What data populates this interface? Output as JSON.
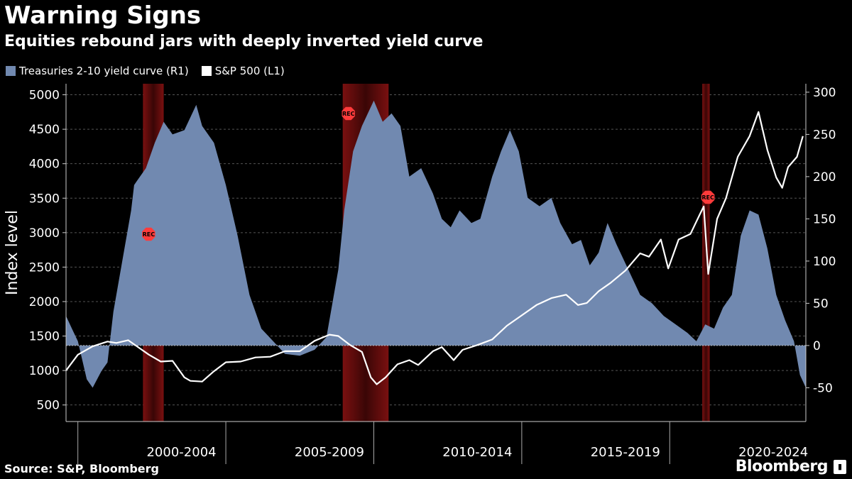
{
  "header": {
    "title": "Warning Signs",
    "subtitle": "Equities rebound jars with deeply inverted yield curve"
  },
  "footer": {
    "source": "Source: S&P, Bloomberg",
    "brand": "Bloomberg"
  },
  "colors": {
    "yield_fill": "#7189b0",
    "sp500_line": "#ffffff",
    "recession": "#7a1010",
    "rec_marker": "#ff3b3b",
    "background": "#000000"
  },
  "chart_data": {
    "type": "area",
    "title": "Warning Signs",
    "subtitle": "Equities rebound jars with deeply inverted yield curve",
    "ylabel_left": "Index level",
    "ylabel_right": "",
    "left_axis": {
      "ticks": [
        500,
        1000,
        1500,
        2000,
        2500,
        3000,
        3500,
        4000,
        4500,
        5000
      ],
      "range": [
        260,
        5160
      ]
    },
    "right_axis": {
      "ticks": [
        -50,
        0,
        50,
        100,
        150,
        200,
        250,
        300
      ],
      "range": [
        -90,
        310
      ]
    },
    "x_axis": {
      "range": [
        1998.6,
        2023.6
      ],
      "tick_labels": [
        "2000-2004",
        "2005-2009",
        "2010-2014",
        "2015-2019",
        "2020-2024"
      ],
      "tick_positions": [
        2002.5,
        2007.5,
        2012.5,
        2017.5,
        2022.5
      ],
      "separators": [
        1999,
        2004,
        2009,
        2014,
        2019
      ]
    },
    "grid": "horizontal dashed",
    "legend_position": "top-left",
    "recessions": [
      {
        "start": 2001.2,
        "end": 2001.9,
        "label": "REC"
      },
      {
        "start": 2007.95,
        "end": 2009.5,
        "label": "REC"
      },
      {
        "start": 2020.1,
        "end": 2020.35,
        "label": "REC"
      }
    ],
    "series": [
      {
        "name": "Treasuries 2-10 yield curve (R1)",
        "axis": "right",
        "x": [
          1998.6,
          1998.8,
          1999.0,
          1999.3,
          1999.5,
          1999.8,
          2000.0,
          2000.2,
          2000.5,
          2000.8,
          2000.9,
          2001.0,
          2001.3,
          2001.6,
          2001.9,
          2002.2,
          2002.6,
          2003.0,
          2003.2,
          2003.6,
          2004.0,
          2004.4,
          2004.8,
          2005.2,
          2005.6,
          2006.0,
          2006.5,
          2007.0,
          2007.4,
          2007.8,
          2008.0,
          2008.3,
          2008.6,
          2009.0,
          2009.3,
          2009.6,
          2009.9,
          2010.2,
          2010.6,
          2011.0,
          2011.3,
          2011.6,
          2011.9,
          2012.3,
          2012.6,
          2013.0,
          2013.3,
          2013.6,
          2013.9,
          2014.2,
          2014.6,
          2015.0,
          2015.3,
          2015.7,
          2016.0,
          2016.3,
          2016.6,
          2016.9,
          2017.2,
          2017.6,
          2018.0,
          2018.4,
          2018.8,
          2019.2,
          2019.6,
          2019.9,
          2020.2,
          2020.5,
          2020.8,
          2021.1,
          2021.4,
          2021.7,
          2022.0,
          2022.3,
          2022.6,
          2022.9,
          2023.2,
          2023.4,
          2023.6
        ],
        "values": [
          35,
          20,
          5,
          -40,
          -50,
          -30,
          -20,
          40,
          100,
          160,
          190,
          195,
          210,
          240,
          265,
          250,
          255,
          285,
          260,
          240,
          190,
          130,
          60,
          20,
          5,
          -10,
          -12,
          -5,
          10,
          90,
          160,
          230,
          260,
          290,
          265,
          275,
          260,
          200,
          210,
          180,
          150,
          140,
          160,
          145,
          150,
          200,
          230,
          255,
          230,
          175,
          165,
          175,
          145,
          120,
          125,
          95,
          110,
          145,
          120,
          90,
          60,
          50,
          35,
          25,
          15,
          5,
          25,
          20,
          45,
          60,
          130,
          160,
          155,
          115,
          60,
          30,
          5,
          -35,
          -50
        ]
      },
      {
        "name": "S&P 500 (L1)",
        "axis": "left",
        "x": [
          1998.6,
          1999.0,
          1999.5,
          2000.0,
          2000.3,
          2000.7,
          2001.0,
          2001.4,
          2001.8,
          2002.2,
          2002.6,
          2002.8,
          2003.2,
          2003.6,
          2004.0,
          2004.5,
          2005.0,
          2005.5,
          2006.0,
          2006.5,
          2007.0,
          2007.5,
          2007.8,
          2008.2,
          2008.6,
          2008.9,
          2009.1,
          2009.4,
          2009.8,
          2010.2,
          2010.5,
          2011.0,
          2011.3,
          2011.7,
          2012.0,
          2012.5,
          2013.0,
          2013.5,
          2014.0,
          2014.5,
          2015.0,
          2015.5,
          2015.9,
          2016.2,
          2016.6,
          2017.0,
          2017.5,
          2018.0,
          2018.3,
          2018.7,
          2018.95,
          2019.3,
          2019.7,
          2020.0,
          2020.15,
          2020.3,
          2020.6,
          2020.9,
          2021.3,
          2021.7,
          2022.0,
          2022.3,
          2022.6,
          2022.8,
          2023.0,
          2023.3,
          2023.5
        ],
        "values": [
          1000,
          1230,
          1350,
          1420,
          1400,
          1440,
          1350,
          1230,
          1130,
          1140,
          900,
          850,
          840,
          990,
          1120,
          1130,
          1190,
          1200,
          1280,
          1280,
          1430,
          1520,
          1500,
          1370,
          1270,
          900,
          800,
          900,
          1090,
          1150,
          1080,
          1280,
          1340,
          1150,
          1300,
          1370,
          1450,
          1650,
          1800,
          1950,
          2050,
          2100,
          1950,
          1980,
          2150,
          2270,
          2450,
          2700,
          2650,
          2900,
          2480,
          2900,
          2980,
          3250,
          3380,
          2400,
          3200,
          3500,
          4100,
          4400,
          4750,
          4200,
          3800,
          3650,
          3950,
          4100,
          4400
        ]
      }
    ]
  }
}
